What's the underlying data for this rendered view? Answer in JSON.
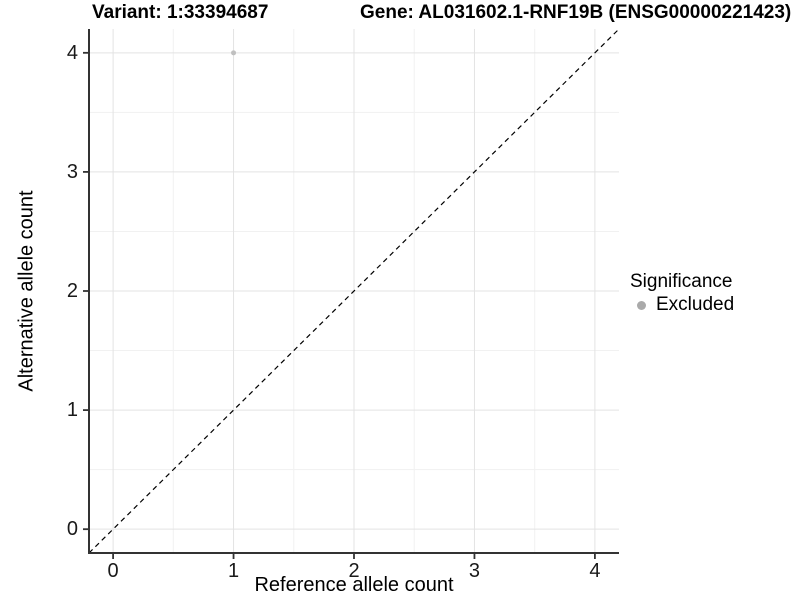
{
  "header": {
    "variant_title": "Variant: 1:33394687",
    "gene_title": "Gene: AL031602.1-RNF19B (ENSG00000221423)"
  },
  "chart_data": {
    "type": "scatter",
    "xlabel": "Reference allele count",
    "ylabel": "Alternative allele count",
    "xlim": [
      -0.2,
      4.2
    ],
    "ylim": [
      -0.2,
      4.2
    ],
    "xticks": [
      0,
      1,
      2,
      3,
      4
    ],
    "yticks": [
      0,
      1,
      2,
      3,
      4
    ],
    "grid": "major and minor gridlines, light gray on white",
    "points": [
      {
        "x": 1,
        "y": 4,
        "significance": "Excluded"
      }
    ],
    "reference_line": {
      "type": "identity y=x",
      "style": "dashed",
      "color": "#000000"
    },
    "legend": {
      "title": "Significance",
      "position": "right",
      "entries": [
        {
          "label": "Excluded",
          "color": "#aaaaaa"
        }
      ]
    }
  },
  "colors": {
    "background": "#ffffff",
    "grid_major": "#e3e3e3",
    "grid_minor": "#f1f1f1",
    "axis_line": "#333333",
    "tick_mark": "#333333",
    "point_fill": "#c0c0c0",
    "text": "#1a1a1a"
  }
}
